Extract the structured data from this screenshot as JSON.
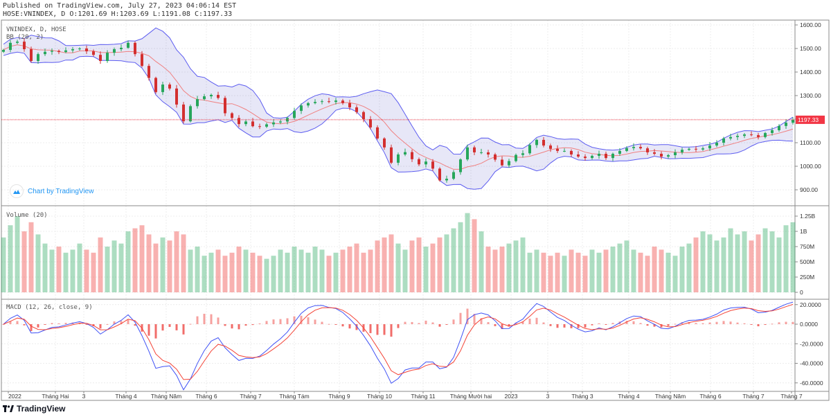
{
  "header": {
    "published": "Published on TradingView.com, July 27, 2023 04:06:14 EST",
    "ohlc_line": "HOSE:VNINDEX, D O:1201.69 H:1203.69 L:1191.08 C:1197.33"
  },
  "legend": {
    "symbol": "VNINDEX, D, HOSE",
    "bb": "BB (20, 2)",
    "volume": "Volume (20)",
    "macd": "MACD (12, 26, close, 9)"
  },
  "watermark": "Chart by TradingView",
  "brand": "TradingView",
  "colors": {
    "up": "#26a65b",
    "down": "#d32f2f",
    "bb_band": "#5c5cf0",
    "bb_basis": "#f08080",
    "macd": "#3f51f5",
    "signal": "#f44336",
    "last_price": "#f23645"
  },
  "chart_data": {
    "type": "candlestick",
    "title": "HOSE:VNINDEX, D",
    "last_price": 1197.33,
    "last_price_label": "1197.33",
    "price_axis": {
      "range": [
        870,
        1620
      ],
      "ticks": [
        1600,
        1500,
        1400,
        1300,
        1200,
        1100,
        1000,
        900
      ],
      "tick_labels": [
        "1600.00",
        "1500.00",
        "1400.00",
        "1300.00",
        "",
        "1100.00",
        "1000.00",
        "900.00"
      ]
    },
    "volume_axis": {
      "range": [
        0,
        1.4
      ],
      "ticks": [
        0,
        0.25,
        0.5,
        0.75,
        1,
        1.25
      ],
      "tick_labels": [
        "0",
        "250M",
        "500M",
        "750M",
        "1B",
        "1.25B"
      ]
    },
    "macd_axis": {
      "range": [
        -65,
        25
      ],
      "ticks": [
        20,
        0,
        -20,
        -40,
        -60
      ],
      "tick_labels": [
        "20.0000",
        "0.0000",
        "-20.0000",
        "-40.0000",
        "-60.0000"
      ]
    },
    "time_labels": [
      "2022",
      "Tháng Hai",
      "3",
      "Tháng 4",
      "Tháng Năm",
      "Tháng 6",
      "Tháng 7",
      "Tháng Tám",
      "Tháng 9",
      "Tháng 10",
      "Tháng 11",
      "Tháng Mười hai",
      "2023",
      "3",
      "Tháng 3",
      "Tháng 4",
      "Tháng Năm",
      "Tháng 6",
      "Tháng 7",
      "Tháng 7"
    ],
    "time_label_index": [
      0.7,
      7.5,
      11.6,
      17.7,
      23.5,
      29.3,
      35.7,
      42,
      48.5,
      54.3,
      60.6,
      67.5,
      73.3,
      78.6,
      83.6,
      90.3,
      96.3,
      102.1,
      108.3,
      113.8
    ],
    "closes": [
      1494,
      1524,
      1529,
      1497,
      1447,
      1476,
      1486,
      1490,
      1485,
      1492,
      1497,
      1500,
      1488,
      1473,
      1447,
      1482,
      1497,
      1503,
      1524,
      1476,
      1426,
      1375,
      1315,
      1347,
      1330,
      1262,
      1191,
      1255,
      1285,
      1297,
      1303,
      1290,
      1225,
      1205,
      1179,
      1190,
      1170,
      1168,
      1178,
      1186,
      1190,
      1205,
      1235,
      1258,
      1268,
      1273,
      1276,
      1273,
      1279,
      1268,
      1250,
      1230,
      1200,
      1165,
      1118,
      1080,
      1015,
      1050,
      1060,
      1030,
      1008,
      1020,
      990,
      940,
      947,
      975,
      1029,
      1080,
      1059,
      1059,
      1050,
      1028,
      1004,
      1022,
      1048,
      1055,
      1090,
      1112,
      1088,
      1074,
      1065,
      1065,
      1050,
      1041,
      1035,
      1044,
      1053,
      1035,
      1053,
      1065,
      1077,
      1082,
      1076,
      1059,
      1053,
      1041,
      1047,
      1059,
      1070,
      1074,
      1071,
      1076,
      1088,
      1100,
      1118,
      1124,
      1129,
      1135,
      1132,
      1124,
      1141,
      1153,
      1171,
      1185,
      1197
    ],
    "volumes_millions": [
      900,
      1100,
      1250,
      1000,
      1150,
      950,
      800,
      700,
      750,
      650,
      700,
      800,
      700,
      650,
      900,
      750,
      850,
      800,
      1000,
      1050,
      1100,
      950,
      800,
      900,
      850,
      1000,
      950,
      700,
      750,
      600,
      650,
      700,
      600,
      650,
      750,
      700,
      650,
      600,
      550,
      600,
      700,
      650,
      750,
      700,
      650,
      750,
      700,
      600,
      650,
      700,
      750,
      800,
      650,
      700,
      850,
      900,
      950,
      800,
      700,
      850,
      900,
      750,
      800,
      900,
      950,
      1050,
      1150,
      1300,
      1200,
      1000,
      750,
      700,
      750,
      800,
      850,
      900,
      650,
      700,
      650,
      600,
      650,
      600,
      700,
      650,
      600,
      700,
      650,
      700,
      750,
      800,
      850,
      700,
      650,
      600,
      750,
      700,
      650,
      600,
      750,
      800,
      900,
      1000,
      950,
      850,
      900,
      1050,
      950,
      1000,
      850,
      950,
      1050,
      1000,
      900,
      1100,
      1150
    ]
  }
}
